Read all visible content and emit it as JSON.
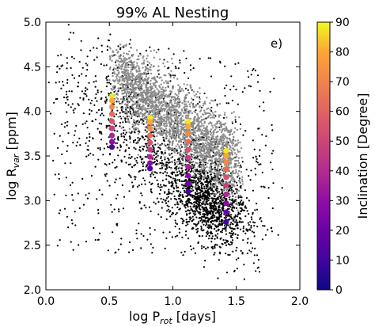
{
  "chart_data": {
    "type": "scatter",
    "title": "99% AL Nesting",
    "annotation": "e)",
    "xlabel": "log P",
    "xlabel_sub": "rot",
    "xlabel_unit": " [days]",
    "ylabel": "log R",
    "ylabel_sub": "var",
    "ylabel_unit": " [ppm]",
    "xlim": [
      0.0,
      2.0
    ],
    "ylim": [
      2.0,
      5.0
    ],
    "xticks": [
      0.0,
      0.5,
      1.0,
      1.5,
      2.0
    ],
    "xtick_labels": [
      "0.0",
      "0.5",
      "1.0",
      "1.5",
      "2.0"
    ],
    "yticks": [
      2.0,
      2.5,
      3.0,
      3.5,
      4.0,
      4.5,
      5.0
    ],
    "ytick_labels": [
      "2.0",
      "2.5",
      "3.0",
      "3.5",
      "4.0",
      "4.5",
      "5.0"
    ],
    "colorbar": {
      "label": "Inclination [Degree]",
      "range": [
        0,
        90
      ],
      "ticks": [
        0,
        10,
        20,
        30,
        40,
        50,
        60,
        70,
        80,
        90
      ],
      "tick_labels": [
        "0",
        "10",
        "20",
        "30",
        "40",
        "50",
        "60",
        "70",
        "80",
        "90"
      ],
      "colormap": "plasma"
    },
    "background_black": {
      "description_free_note": "",
      "color": "#000000"
    },
    "background_grey": {
      "color": "#8c8c8c"
    },
    "series": [
      {
        "x": 0.52,
        "points": [
          {
            "y": 4.17,
            "inclination": 88
          },
          {
            "y": 4.12,
            "inclination": 80
          },
          {
            "y": 4.05,
            "inclination": 72
          },
          {
            "y": 3.97,
            "inclination": 63
          },
          {
            "y": 3.89,
            "inclination": 55
          },
          {
            "y": 3.81,
            "inclination": 47
          },
          {
            "y": 3.73,
            "inclination": 38
          },
          {
            "y": 3.66,
            "inclination": 28
          },
          {
            "y": 3.6,
            "inclination": 14
          }
        ]
      },
      {
        "x": 0.82,
        "points": [
          {
            "y": 3.93,
            "inclination": 88
          },
          {
            "y": 3.88,
            "inclination": 80
          },
          {
            "y": 3.81,
            "inclination": 72
          },
          {
            "y": 3.73,
            "inclination": 63
          },
          {
            "y": 3.65,
            "inclination": 55
          },
          {
            "y": 3.57,
            "inclination": 47
          },
          {
            "y": 3.49,
            "inclination": 38
          },
          {
            "y": 3.42,
            "inclination": 28
          },
          {
            "y": 3.36,
            "inclination": 14
          }
        ]
      },
      {
        "x": 1.12,
        "points": [
          {
            "y": 3.89,
            "inclination": 88
          },
          {
            "y": 3.83,
            "inclination": 80
          },
          {
            "y": 3.75,
            "inclination": 72
          },
          {
            "y": 3.66,
            "inclination": 63
          },
          {
            "y": 3.57,
            "inclination": 55
          },
          {
            "y": 3.48,
            "inclination": 47
          },
          {
            "y": 3.38,
            "inclination": 38
          },
          {
            "y": 3.28,
            "inclination": 28
          },
          {
            "y": 3.19,
            "inclination": 20
          },
          {
            "y": 3.1,
            "inclination": 10
          }
        ]
      },
      {
        "x": 1.42,
        "points": [
          {
            "y": 3.56,
            "inclination": 88
          },
          {
            "y": 3.5,
            "inclination": 80
          },
          {
            "y": 3.43,
            "inclination": 72
          },
          {
            "y": 3.35,
            "inclination": 63
          },
          {
            "y": 3.26,
            "inclination": 55
          },
          {
            "y": 3.17,
            "inclination": 47
          },
          {
            "y": 3.07,
            "inclination": 38
          },
          {
            "y": 2.97,
            "inclination": 28
          },
          {
            "y": 2.87,
            "inclination": 20
          },
          {
            "y": 2.76,
            "inclination": 10
          }
        ]
      }
    ]
  }
}
